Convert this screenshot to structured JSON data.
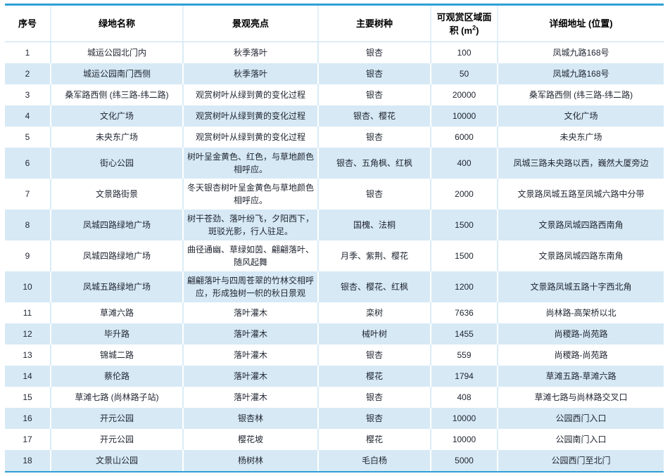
{
  "colors": {
    "accent_border": "#2e9fd4",
    "row_blue": "#d6e9f5",
    "row_white": "#ffffff",
    "separator_on_white": "#d9ecf7",
    "header_underline": "#bcdff2",
    "text": "#1f2430"
  },
  "table": {
    "header": {
      "no": "序号",
      "name": "绿地名称",
      "highlight": "景观亮点",
      "species": "主要树种",
      "area_prefix": "可观赏区域面积 (m",
      "area_sup": "2",
      "area_suffix": ")",
      "address": "详细地址 (位置)"
    },
    "columns": [
      "no",
      "name",
      "highlight",
      "species",
      "area",
      "address"
    ],
    "rows": [
      {
        "no": "1",
        "name": "城运公园北门内",
        "highlight": "秋季落叶",
        "species": "银杏",
        "area": "100",
        "address": "凤城九路168号",
        "tall": false
      },
      {
        "no": "2",
        "name": "城运公园南门西侧",
        "highlight": "秋季落叶",
        "species": "银杏",
        "area": "50",
        "address": "凤城九路168号",
        "tall": false
      },
      {
        "no": "3",
        "name": "桑军路西侧 (纬三路-纬二路)",
        "highlight": "观赏树叶从绿到黄的变化过程",
        "species": "银杏",
        "area": "20000",
        "address": "桑军路西侧 (纬三路-纬二路)",
        "tall": false
      },
      {
        "no": "4",
        "name": "文化广场",
        "highlight": "观赏树叶从绿到黄的变化过程",
        "species": "银杏、樱花",
        "area": "10000",
        "address": "文化广场",
        "tall": false
      },
      {
        "no": "5",
        "name": "未央东广场",
        "highlight": "观赏树叶从绿到黄的变化过程",
        "species": "银杏",
        "area": "6000",
        "address": "未央东广场",
        "tall": false
      },
      {
        "no": "6",
        "name": "街心公园",
        "highlight": "树叶呈金黄色、红色，与草地颜色相呼应。",
        "species": "银杏、五角枫、红枫",
        "area": "400",
        "address": "凤城三路未央路以西，巍然大厦旁边",
        "tall": true
      },
      {
        "no": "7",
        "name": "文景路街景",
        "highlight": "冬天银杏树叶呈金黄色与草地颜色相呼应。",
        "species": "银杏",
        "area": "2000",
        "address": "文景路凤城五路至凤城六路中分带",
        "tall": true
      },
      {
        "no": "8",
        "name": "凤城四路绿地广场",
        "highlight": "树干苍劲、落叶纷飞，夕阳西下，斑驳光影，行人驻足。",
        "species": "国槐、法桐",
        "area": "1500",
        "address": "文景路凤城四路西南角",
        "tall": true
      },
      {
        "no": "9",
        "name": "凤城四路绿地广场",
        "highlight": "曲径通幽、草绿如茵、翩翩落叶、随风起舞",
        "species": "月季、紫荆、樱花",
        "area": "1500",
        "address": "文景路凤城四路东南角",
        "tall": true
      },
      {
        "no": "10",
        "name": "凤城五路绿地广场",
        "highlight": "翩翩落叶与四周苍翠的竹林交相呼应，形成独树一帜的秋日景观",
        "species": "银杏、樱花、红枫",
        "area": "1200",
        "address": "文景路凤城五路十字西北角",
        "tall": true
      },
      {
        "no": "11",
        "name": "草滩六路",
        "highlight": "落叶灌木",
        "species": "栾树",
        "area": "7636",
        "address": "尚林路-高架桥以北",
        "tall": false
      },
      {
        "no": "12",
        "name": "毕升路",
        "highlight": "落叶灌木",
        "species": "械叶树",
        "area": "1455",
        "address": "尚稷路-尚苑路",
        "tall": false
      },
      {
        "no": "13",
        "name": "锦城二路",
        "highlight": "落叶灌木",
        "species": "银杏",
        "area": "559",
        "address": "尚稷路-尚苑路",
        "tall": false
      },
      {
        "no": "14",
        "name": "蔡伦路",
        "highlight": "落叶灌木",
        "species": "樱花",
        "area": "1794",
        "address": "草滩五路-草滩六路",
        "tall": false
      },
      {
        "no": "15",
        "name": "草滩七路 (尚林路子站)",
        "highlight": "落叶灌木",
        "species": "银杏",
        "area": "408",
        "address": "草滩七路与尚林路交叉口",
        "tall": false
      },
      {
        "no": "16",
        "name": "开元公园",
        "highlight": "银杏林",
        "species": "银杏",
        "area": "10000",
        "address": "公园西门入口",
        "tall": false
      },
      {
        "no": "17",
        "name": "开元公园",
        "highlight": "樱花坡",
        "species": "樱花",
        "area": "10000",
        "address": "公园南门入口",
        "tall": false
      },
      {
        "no": "18",
        "name": "文景山公园",
        "highlight": "杨树林",
        "species": "毛白杨",
        "area": "5000",
        "address": "公园西门至北门",
        "tall": false
      }
    ]
  }
}
